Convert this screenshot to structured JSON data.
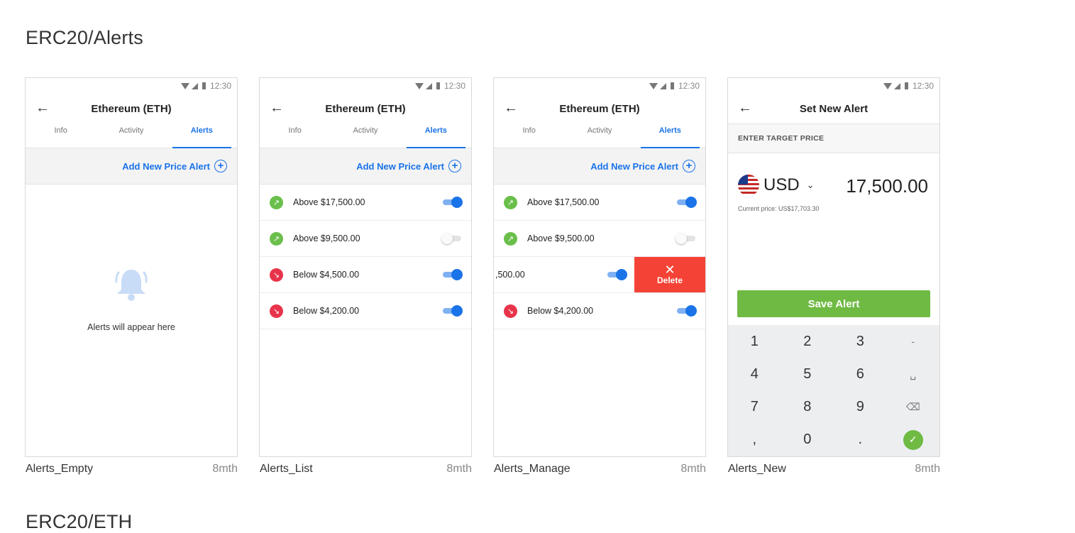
{
  "sections": {
    "alerts_title": "ERC20/Alerts",
    "eth_title": "ERC20/ETH"
  },
  "status": {
    "time": "12:30"
  },
  "frames": [
    {
      "caption": "Alerts_Empty",
      "age": "8mth",
      "title": "Ethereum (ETH)",
      "tabs": [
        "Info",
        "Activity",
        "Alerts"
      ],
      "add_link": "Add New Price Alert",
      "empty_text": "Alerts will appear here"
    },
    {
      "caption": "Alerts_List",
      "age": "8mth",
      "title": "Ethereum (ETH)",
      "tabs": [
        "Info",
        "Activity",
        "Alerts"
      ],
      "add_link": "Add New Price Alert",
      "alerts": [
        {
          "label": "Above $17,500.00",
          "direction": "up",
          "enabled": true
        },
        {
          "label": "Above $9,500.00",
          "direction": "up",
          "enabled": false
        },
        {
          "label": "Below $4,500.00",
          "direction": "down",
          "enabled": true
        },
        {
          "label": "Below $4,200.00",
          "direction": "down",
          "enabled": true
        }
      ]
    },
    {
      "caption": "Alerts_Manage",
      "age": "8mth",
      "title": "Ethereum (ETH)",
      "tabs": [
        "Info",
        "Activity",
        "Alerts"
      ],
      "add_link": "Add New Price Alert",
      "alerts": [
        {
          "label": "Above $17,500.00",
          "direction": "up",
          "enabled": true
        },
        {
          "label": "Above $9,500.00",
          "direction": "up",
          "enabled": false
        },
        {
          "label": ",500.00",
          "direction": "down",
          "enabled": true
        },
        {
          "label": "Below $4,200.00",
          "direction": "down",
          "enabled": true
        }
      ],
      "delete_label": "Delete"
    },
    {
      "caption": "Alerts_New",
      "age": "8mth",
      "title": "Set New Alert",
      "section_label": "ENTER TARGET PRICE",
      "currency": "USD",
      "price_value": "17,500.00",
      "current_price": "Current price: US$17,703.30",
      "save_label": "Save Alert",
      "keys": [
        "1",
        "2",
        "3",
        "-",
        "4",
        "5",
        "6",
        "␣",
        "7",
        "8",
        "9",
        "⌫",
        ",",
        "0",
        ".",
        "✓"
      ]
    }
  ],
  "colors": {
    "accent": "#1a73e8",
    "up": "#6abf4b",
    "down": "#e8344b",
    "delete": "#f44336",
    "save": "#6fba43"
  }
}
